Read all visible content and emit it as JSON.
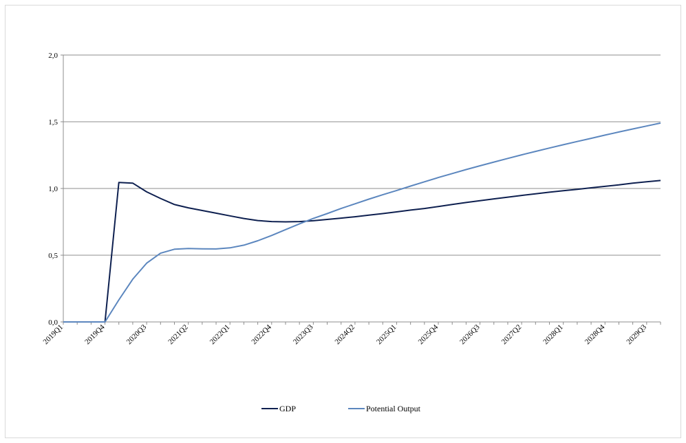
{
  "chart_data": {
    "type": "line",
    "title": "",
    "xlabel": "",
    "ylabel": "",
    "ylim": [
      0,
      2
    ],
    "yticks": [
      "0,0",
      "0,5",
      "1,0",
      "1,5",
      "2,0"
    ],
    "grid": true,
    "legend_position": "bottom",
    "x": [
      "2019Q1",
      "2019Q2",
      "2019Q3",
      "2019Q4",
      "2020Q1",
      "2020Q2",
      "2020Q3",
      "2020Q4",
      "2021Q1",
      "2021Q2",
      "2021Q3",
      "2021Q4",
      "2022Q1",
      "2022Q2",
      "2022Q3",
      "2022Q4",
      "2023Q1",
      "2023Q2",
      "2023Q3",
      "2023Q4",
      "2024Q1",
      "2024Q2",
      "2024Q3",
      "2024Q4",
      "2025Q1",
      "2025Q2",
      "2025Q3",
      "2025Q4",
      "2026Q1",
      "2026Q2",
      "2026Q3",
      "2026Q4",
      "2027Q1",
      "2027Q2",
      "2027Q3",
      "2027Q4",
      "2028Q1",
      "2028Q2",
      "2028Q3",
      "2028Q4",
      "2029Q1",
      "2029Q2",
      "2029Q3",
      "2029Q4"
    ],
    "xtick_labels": [
      "2019Q1",
      "2019Q4",
      "2020Q3",
      "2021Q2",
      "2022Q1",
      "2022Q4",
      "2023Q3",
      "2024Q2",
      "2025Q1",
      "2025Q4",
      "2026Q3",
      "2027Q2",
      "2028Q1",
      "2028Q4",
      "2029Q3"
    ],
    "series": [
      {
        "name": "GDP",
        "color": "#0d1f4f",
        "values": [
          0,
          0,
          0,
          0,
          1.045,
          1.04,
          0.975,
          0.925,
          0.88,
          0.855,
          0.835,
          0.815,
          0.795,
          0.775,
          0.76,
          0.752,
          0.75,
          0.752,
          0.758,
          0.768,
          0.778,
          0.788,
          0.8,
          0.812,
          0.825,
          0.838,
          0.85,
          0.865,
          0.88,
          0.895,
          0.908,
          0.922,
          0.935,
          0.948,
          0.96,
          0.972,
          0.983,
          0.994,
          1.005,
          1.016,
          1.027,
          1.04,
          1.05,
          1.06
        ]
      },
      {
        "name": "Potential Output",
        "color": "#5b86be",
        "values": [
          0,
          0,
          0,
          0,
          0.165,
          0.32,
          0.44,
          0.515,
          0.545,
          0.55,
          0.548,
          0.547,
          0.555,
          0.575,
          0.608,
          0.648,
          0.692,
          0.735,
          0.775,
          0.812,
          0.85,
          0.885,
          0.92,
          0.953,
          0.985,
          1.018,
          1.05,
          1.082,
          1.112,
          1.142,
          1.17,
          1.198,
          1.225,
          1.252,
          1.278,
          1.303,
          1.328,
          1.352,
          1.376,
          1.4,
          1.423,
          1.446,
          1.468,
          1.49
        ]
      }
    ]
  }
}
